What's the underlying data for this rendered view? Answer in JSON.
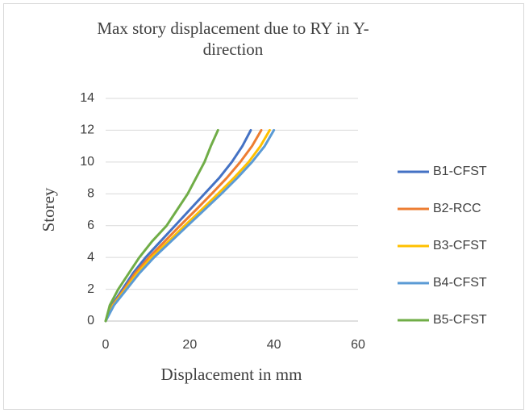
{
  "chart_data": {
    "type": "line",
    "title": "Max story displacement due to RY in Y-direction",
    "xlabel": "Displacement in mm",
    "ylabel": "Storey",
    "xlim": [
      0,
      60
    ],
    "xticks": [
      0,
      20,
      40,
      60
    ],
    "ylim": [
      0,
      14
    ],
    "yticks": [
      0,
      2,
      4,
      6,
      8,
      10,
      12,
      14
    ],
    "grid": true,
    "legend": "right",
    "series": [
      {
        "name": "B1-CFST",
        "color": "#4472c4",
        "x": [
          0,
          1.5,
          4,
          6.5,
          9.5,
          13,
          16.5,
          20,
          23.5,
          27,
          30,
          32.5,
          34.5
        ],
        "values": [
          0,
          1,
          2,
          3,
          4,
          5,
          6,
          7,
          8,
          9,
          10,
          11,
          12
        ]
      },
      {
        "name": "B2-RCC",
        "color": "#ed7d31",
        "x": [
          0,
          1.7,
          4.4,
          7,
          10.3,
          14,
          17.7,
          21.5,
          25.2,
          28.8,
          32,
          34.8,
          37
        ],
        "values": [
          0,
          1,
          2,
          3,
          4,
          5,
          6,
          7,
          8,
          9,
          10,
          11,
          12
        ]
      },
      {
        "name": "B3-CFST",
        "color": "#ffc000",
        "x": [
          0,
          1.8,
          4.7,
          7.5,
          10.9,
          14.9,
          18.8,
          22.8,
          26.7,
          30.5,
          34,
          36.8,
          39
        ],
        "values": [
          0,
          1,
          2,
          3,
          4,
          5,
          6,
          7,
          8,
          9,
          10,
          11,
          12
        ]
      },
      {
        "name": "B4-CFST",
        "color": "#5b9bd5",
        "x": [
          0,
          2,
          5,
          8,
          11.5,
          15.5,
          19.5,
          23.5,
          27.5,
          31.3,
          34.8,
          37.8,
          40
        ],
        "values": [
          0,
          1,
          2,
          3,
          4,
          5,
          6,
          7,
          8,
          9,
          10,
          11,
          12
        ]
      },
      {
        "name": "B5-CFST",
        "color": "#70ad47",
        "x": [
          0,
          1,
          3,
          5.5,
          8,
          11,
          14.5,
          17,
          19.5,
          21.5,
          23.5,
          25,
          26.7
        ],
        "values": [
          0,
          1,
          2,
          3,
          4,
          5,
          6,
          7,
          8,
          9,
          10,
          11,
          12
        ]
      }
    ]
  }
}
